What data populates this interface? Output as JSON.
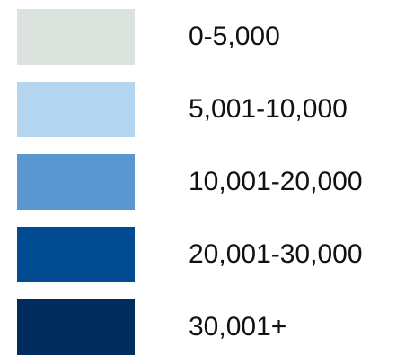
{
  "legend": {
    "items": [
      {
        "label": "0-5,000",
        "color": "#DCE3DE"
      },
      {
        "label": "5,001-10,000",
        "color": "#B3D5F0"
      },
      {
        "label": "10,001-20,000",
        "color": "#5A97D1"
      },
      {
        "label": "20,001-30,000",
        "color": "#004B92"
      },
      {
        "label": "30,001+",
        "color": "#002D5E"
      }
    ]
  }
}
